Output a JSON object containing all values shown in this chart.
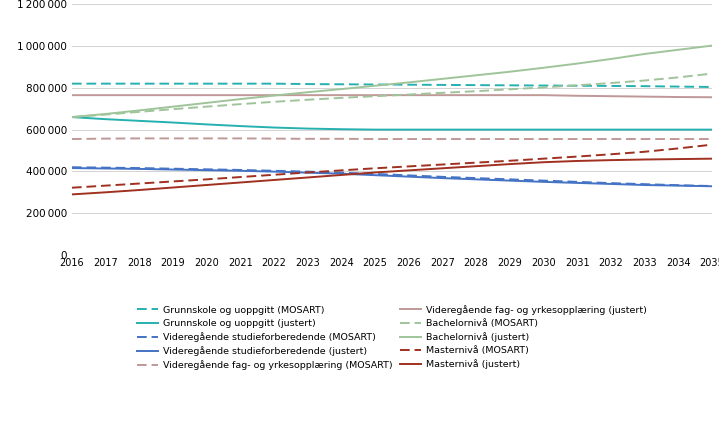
{
  "years": [
    2016,
    2017,
    2018,
    2019,
    2020,
    2021,
    2022,
    2023,
    2024,
    2025,
    2026,
    2027,
    2028,
    2029,
    2030,
    2031,
    2032,
    2033,
    2034,
    2035
  ],
  "series": {
    "grunnskole_mosart": [
      820000,
      820000,
      820000,
      820000,
      820000,
      820000,
      820000,
      818000,
      817000,
      816000,
      815000,
      814000,
      813000,
      812000,
      811000,
      810000,
      809000,
      808000,
      806000,
      804000
    ],
    "grunnskole_justert": [
      660000,
      650000,
      642000,
      634000,
      625000,
      617000,
      610000,
      605000,
      602000,
      600000,
      600000,
      600000,
      600000,
      600000,
      600000,
      600000,
      600000,
      600000,
      600000,
      600000
    ],
    "vgs_stforbered_mosart": [
      420000,
      418000,
      416000,
      413000,
      410000,
      407000,
      403000,
      399000,
      394000,
      388000,
      381000,
      374000,
      368000,
      362000,
      356000,
      350000,
      344000,
      339000,
      334000,
      330000
    ],
    "vgs_stforbered_justert": [
      416000,
      414000,
      412000,
      409000,
      406000,
      403000,
      399000,
      394000,
      389000,
      382000,
      375000,
      368000,
      362000,
      356000,
      350000,
      345000,
      340000,
      335000,
      332000,
      329000
    ],
    "vgs_fag_mosart": [
      555000,
      557000,
      558000,
      558000,
      558000,
      558000,
      557000,
      556000,
      556000,
      555000,
      555000,
      555000,
      555000,
      555000,
      555000,
      555000,
      555000,
      555000,
      555000,
      555000
    ],
    "vgs_fag_justert": [
      765000,
      765000,
      765000,
      765000,
      765000,
      765000,
      765000,
      765000,
      765000,
      765000,
      765000,
      765000,
      765000,
      765000,
      765000,
      762000,
      760000,
      758000,
      756000,
      755000
    ],
    "bachelor_mosart": [
      660000,
      672000,
      685000,
      698000,
      710000,
      722000,
      733000,
      743000,
      752000,
      760000,
      768000,
      776000,
      784000,
      793000,
      802000,
      812000,
      823000,
      835000,
      850000,
      868000
    ],
    "bachelor_justert": [
      660000,
      675000,
      692000,
      710000,
      728000,
      746000,
      763000,
      779000,
      794000,
      810000,
      826000,
      843000,
      860000,
      877000,
      896000,
      916000,
      938000,
      962000,
      982000,
      1002000
    ],
    "master_mosart": [
      322000,
      332000,
      342000,
      352000,
      362000,
      373000,
      384000,
      395000,
      405000,
      415000,
      424000,
      433000,
      442000,
      451000,
      461000,
      471000,
      482000,
      494000,
      510000,
      528000
    ],
    "master_justert": [
      290000,
      300000,
      311000,
      323000,
      335000,
      347000,
      359000,
      371000,
      383000,
      395000,
      405000,
      415000,
      425000,
      435000,
      444000,
      450000,
      454000,
      457000,
      459000,
      461000
    ]
  },
  "colors": {
    "grunnskole": "#26b0b0",
    "vgs_stforbered": "#4472c4",
    "vgs_fag": "#c09898",
    "bachelor": "#9fc49a",
    "master": "#a03020"
  },
  "ylim": [
    0,
    1200000
  ],
  "yticks": [
    0,
    200000,
    400000,
    600000,
    800000,
    1000000,
    1200000
  ],
  "legend_entries_col1": [
    "Grunnskole og uoppgitt (MOSART)",
    "Videregående studieforberedende (MOSART)",
    "Videregående fag- og yrkesopplæring (MOSART)",
    "Bachelornivå (MOSART)",
    "Masternivå (MOSART)"
  ],
  "legend_entries_col2": [
    "Grunnskole og uoppgitt (justert)",
    "Videregående studieforberedende (justert)",
    "Videregående fag- og yrkesopplæring (justert)",
    "Bachelornivå (justert)",
    "Masternivå (justert)"
  ]
}
